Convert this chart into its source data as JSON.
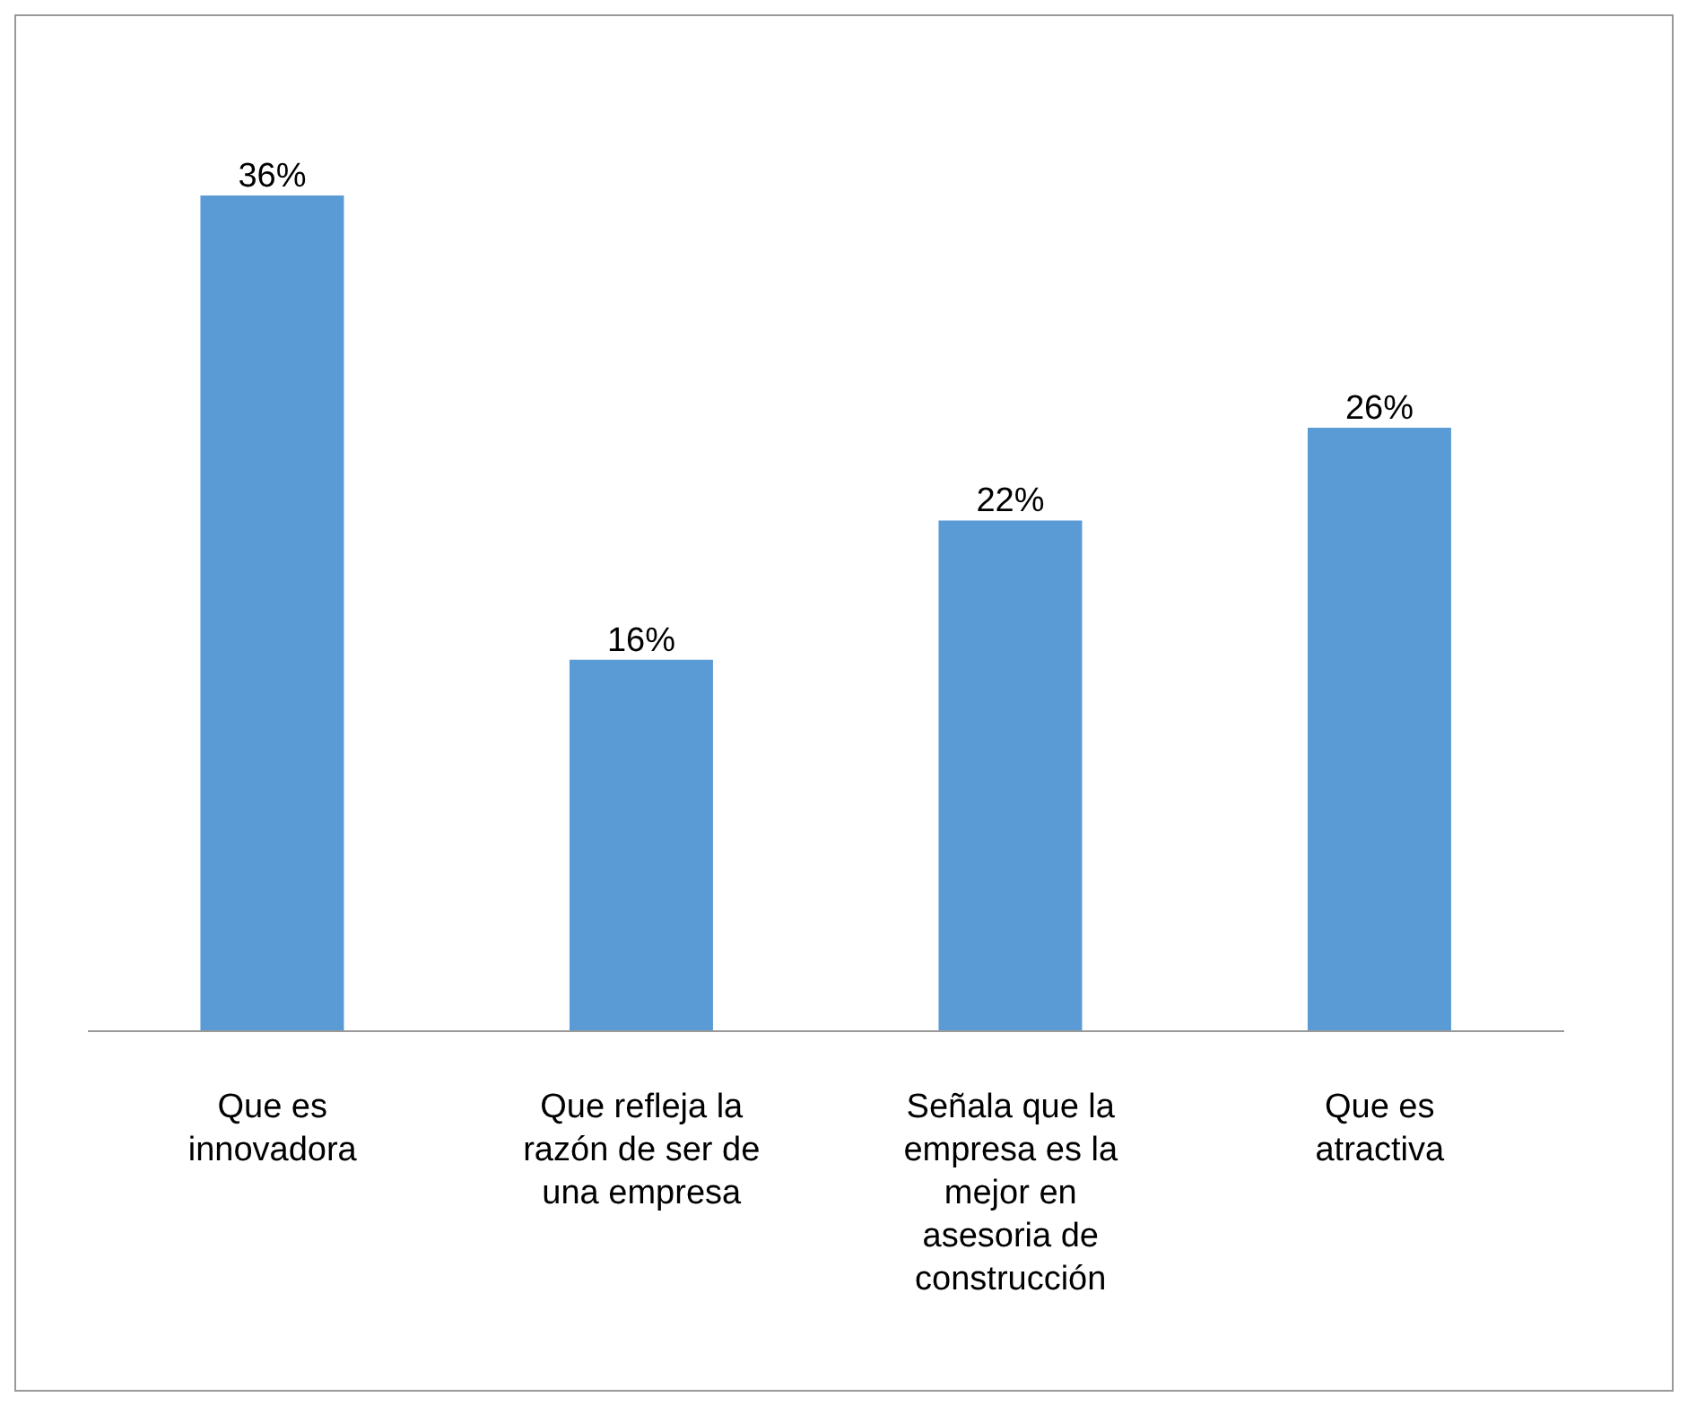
{
  "chart_data": {
    "type": "bar",
    "categories": [
      "Que es innovadora",
      "Que refleja la razón de ser de una empresa",
      "Señala que la empresa es la mejor en asesoria de construcción",
      "Que es atractiva"
    ],
    "values": [
      36,
      16,
      22,
      26
    ],
    "value_labels": [
      "36%",
      "16%",
      "22%",
      "26%"
    ],
    "color": "#5b9bd5",
    "legend": false,
    "grid": false
  }
}
